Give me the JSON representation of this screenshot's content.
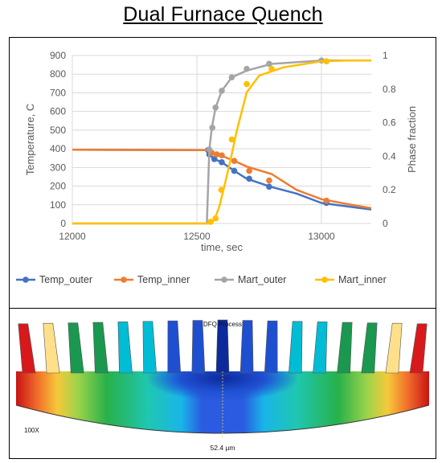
{
  "page": {
    "title": "Dual Furnace Quench"
  },
  "chart_data": {
    "type": "line",
    "title": "",
    "xlabel": "time, sec",
    "ylabel": "Temperature, C",
    "y2label": "Phase fraction",
    "xlim": [
      12000,
      13200
    ],
    "ylim": [
      0,
      900
    ],
    "y2lim": [
      0,
      1
    ],
    "xticks": [
      12000,
      12500,
      13000
    ],
    "yticks": [
      0,
      100,
      200,
      300,
      400,
      500,
      600,
      700,
      800,
      900
    ],
    "y2ticks": [
      0,
      0.2,
      0.4,
      0.6,
      0.8,
      1
    ],
    "y2tick_labels": [
      "0",
      "0.2",
      "0.4",
      "0.6",
      "0.8",
      "1"
    ],
    "grid": true,
    "legend": "bottom",
    "series": [
      {
        "name": "Temp_outer",
        "axis": "left",
        "color": "#4472C4",
        "line": [
          [
            12000,
            395
          ],
          [
            12545,
            393
          ],
          [
            12550,
            370
          ],
          [
            12570,
            345
          ],
          [
            12600,
            328
          ],
          [
            12650,
            282
          ],
          [
            12700,
            240
          ],
          [
            12800,
            195
          ],
          [
            12900,
            160
          ],
          [
            13000,
            110
          ],
          [
            13100,
            92
          ],
          [
            13200,
            75
          ]
        ],
        "markers": [
          [
            12545,
            393
          ],
          [
            12550,
            370
          ],
          [
            12570,
            345
          ],
          [
            12600,
            328
          ],
          [
            12650,
            282
          ],
          [
            12710,
            240
          ],
          [
            12790,
            197
          ],
          [
            13020,
            110
          ]
        ]
      },
      {
        "name": "Temp_inner",
        "axis": "left",
        "color": "#ED7D31",
        "line": [
          [
            12000,
            395
          ],
          [
            12545,
            393
          ],
          [
            12560,
            378
          ],
          [
            12600,
            362
          ],
          [
            12650,
            335
          ],
          [
            12700,
            305
          ],
          [
            12800,
            265
          ],
          [
            12900,
            180
          ],
          [
            13000,
            130
          ],
          [
            13100,
            105
          ],
          [
            13200,
            82
          ]
        ],
        "markers": [
          [
            12560,
            378
          ],
          [
            12580,
            370
          ],
          [
            12600,
            365
          ],
          [
            12650,
            335
          ],
          [
            12710,
            282
          ],
          [
            12790,
            230
          ],
          [
            13020,
            122
          ]
        ]
      },
      {
        "name": "Mart_outer",
        "axis": "right",
        "color": "#A5A5A5",
        "line": [
          [
            12000,
            0
          ],
          [
            12540,
            0
          ],
          [
            12550,
            0.44
          ],
          [
            12560,
            0.57
          ],
          [
            12575,
            0.69
          ],
          [
            12600,
            0.79
          ],
          [
            12640,
            0.87
          ],
          [
            12700,
            0.91
          ],
          [
            12800,
            0.95
          ],
          [
            12900,
            0.96
          ],
          [
            13000,
            0.97
          ],
          [
            13100,
            0.97
          ],
          [
            13200,
            0.97
          ]
        ],
        "markers": [
          [
            12550,
            0.44
          ],
          [
            12562,
            0.57
          ],
          [
            12575,
            0.69
          ],
          [
            12600,
            0.79
          ],
          [
            12640,
            0.87
          ],
          [
            12700,
            0.92
          ],
          [
            12790,
            0.95
          ],
          [
            13000,
            0.97
          ]
        ]
      },
      {
        "name": "Mart_inner",
        "axis": "right",
        "color": "#FFC000",
        "line": [
          [
            12000,
            0
          ],
          [
            12550,
            0
          ],
          [
            12570,
            0.02
          ],
          [
            12590,
            0.1
          ],
          [
            12610,
            0.22
          ],
          [
            12635,
            0.38
          ],
          [
            12660,
            0.55
          ],
          [
            12700,
            0.78
          ],
          [
            12750,
            0.88
          ],
          [
            12850,
            0.93
          ],
          [
            13000,
            0.965
          ],
          [
            13100,
            0.97
          ],
          [
            13200,
            0.97
          ]
        ],
        "markers": [
          [
            12555,
            0.01
          ],
          [
            12575,
            0.03
          ],
          [
            12598,
            0.2
          ],
          [
            12640,
            0.5
          ],
          [
            12700,
            0.83
          ],
          [
            12800,
            0.92
          ],
          [
            13020,
            0.965
          ]
        ]
      }
    ]
  },
  "fem": {
    "process_label": "DFQ Process",
    "scale_label": "52.4 µm",
    "magnification": "100X",
    "colors": {
      "red": "#d7191c",
      "orange": "#fd8d3c",
      "yellow": "#fee08b",
      "green": "#1a9850",
      "cyan": "#00bcd4",
      "blue": "#1f4fd1",
      "navy": "#0d2a9c"
    }
  }
}
